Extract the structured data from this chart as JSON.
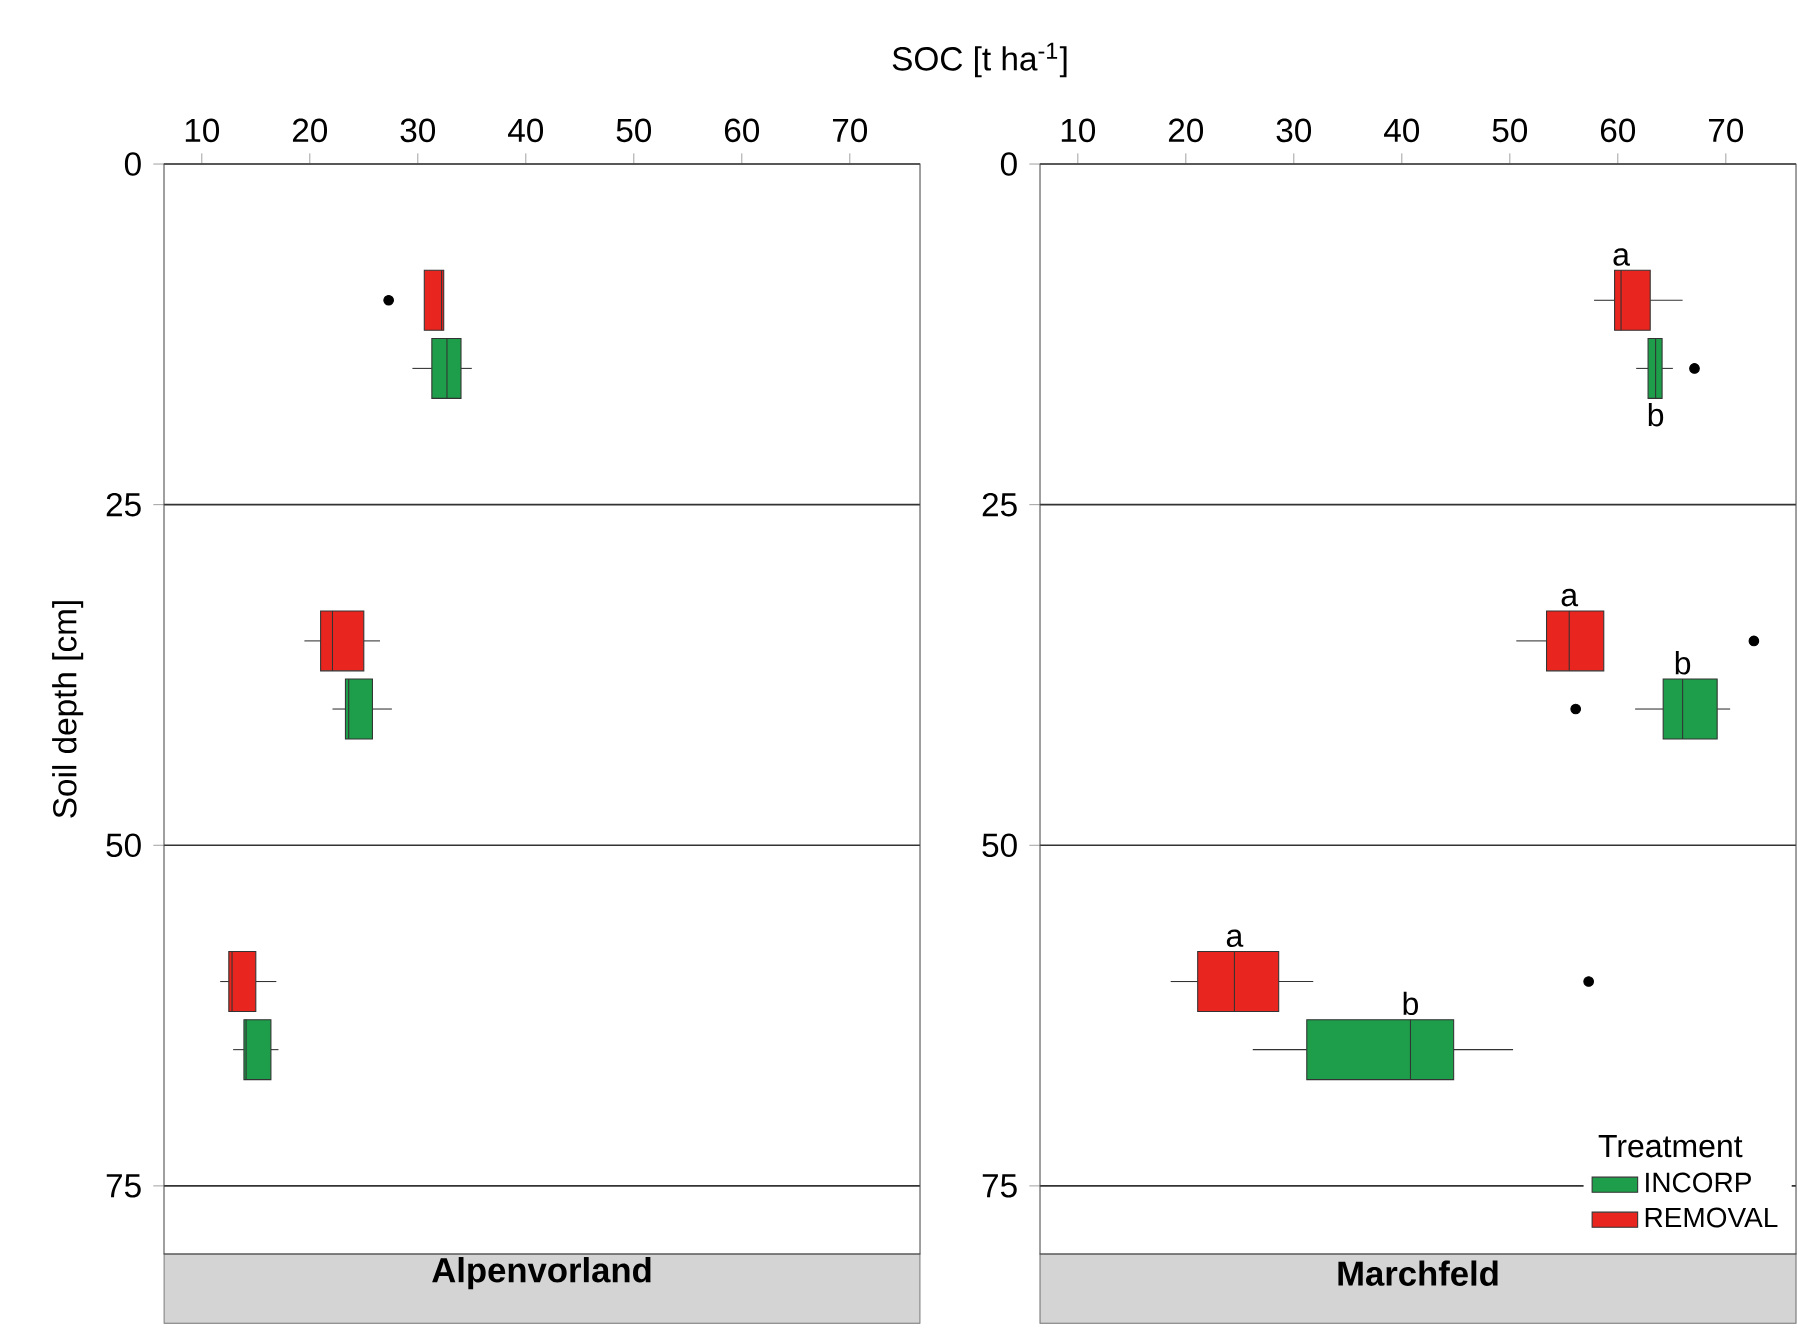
{
  "chart_data": [
    {
      "type": "box",
      "orientation": "horizontal",
      "title": "Alpenvorland",
      "xlabel": "SOC [t ha$^{-1}$]",
      "ylabel": "Soil depth [cm]",
      "xlim": [
        6.5,
        76.5
      ],
      "xticks": [
        10,
        20,
        30,
        40,
        50,
        60,
        70
      ],
      "ylim": [
        80,
        0
      ],
      "yticks": [
        0,
        25,
        50,
        75
      ],
      "grid": "y",
      "series": [
        {
          "color": "#1e9e4a",
          "x": [
            15,
            40,
            65
          ],
          "boxes": [
            {
              "low": 29.5,
              "q1": 31.3,
              "median": 32.7,
              "q3": 34.0,
              "high": 35.0
            },
            {
              "low": 22.1,
              "q1": 23.3,
              "median": 23.6,
              "q3": 25.8,
              "high": 27.6
            },
            {
              "low": 12.9,
              "q1": 13.9,
              "median": 14.1,
              "q3": 16.4,
              "high": 17.1
            }
          ]
        },
        {
          "color": "#e8261f",
          "x": [
            10,
            35,
            60
          ],
          "boxes": [
            {
              "low": 30.6,
              "q1": 30.6,
              "median": 32.2,
              "q3": 32.4,
              "high": 32.4,
              "outliers": [
                27.3
              ]
            },
            {
              "low": 19.5,
              "q1": 21.0,
              "median": 22.1,
              "q3": 25.0,
              "high": 26.5
            },
            {
              "low": 11.7,
              "q1": 12.5,
              "median": 12.8,
              "q3": 15.0,
              "high": 16.9
            }
          ]
        }
      ]
    },
    {
      "type": "box",
      "orientation": "horizontal",
      "title": "Marchfeld",
      "xlim": [
        6.5,
        76.5
      ],
      "xticks": [
        10,
        20,
        30,
        40,
        50,
        60,
        70
      ],
      "ylim": [
        80,
        0
      ],
      "yticks": [
        0,
        25,
        50,
        75
      ],
      "grid": "y",
      "legend": "bottom right",
      "legend_title": "Treatment",
      "annotations": [
        {
          "text": "a",
          "x": 60.3,
          "y": 7.8
        },
        {
          "text": "b",
          "x": 63.5,
          "y": 17.2
        },
        {
          "text": "a",
          "x": 55.5,
          "y": 32.8
        },
        {
          "text": "b",
          "x": 66.0,
          "y": 37.8
        },
        {
          "text": "a",
          "x": 24.5,
          "y": 57.8
        },
        {
          "text": "b",
          "x": 40.8,
          "y": 62.8
        }
      ],
      "series": [
        {
          "name": "INCORP",
          "color": "#1e9e4a",
          "x": [
            15,
            40,
            65
          ],
          "boxes": [
            {
              "low": 61.7,
              "q1": 62.8,
              "median": 63.5,
              "q3": 64.1,
              "high": 65.1,
              "outliers": [
                67.1
              ]
            },
            {
              "low": 61.6,
              "q1": 64.2,
              "median": 66.0,
              "q3": 69.2,
              "high": 70.4,
              "outliers": [
                56.1
              ]
            },
            {
              "low": 26.2,
              "q1": 31.2,
              "median": 40.8,
              "q3": 44.8,
              "high": 50.3
            }
          ]
        },
        {
          "name": "REMOVAL",
          "color": "#e8261f",
          "x": [
            10,
            35,
            60
          ],
          "boxes": [
            {
              "low": 57.8,
              "q1": 59.7,
              "median": 60.3,
              "q3": 63.0,
              "high": 66.0
            },
            {
              "low": 50.6,
              "q1": 53.4,
              "median": 55.5,
              "q3": 58.7,
              "high": 58.7,
              "outliers": [
                72.6
              ]
            },
            {
              "low": 18.6,
              "q1": 21.1,
              "median": 24.5,
              "q3": 28.6,
              "high": 31.8,
              "outliers": [
                57.3
              ]
            }
          ]
        }
      ]
    }
  ]
}
